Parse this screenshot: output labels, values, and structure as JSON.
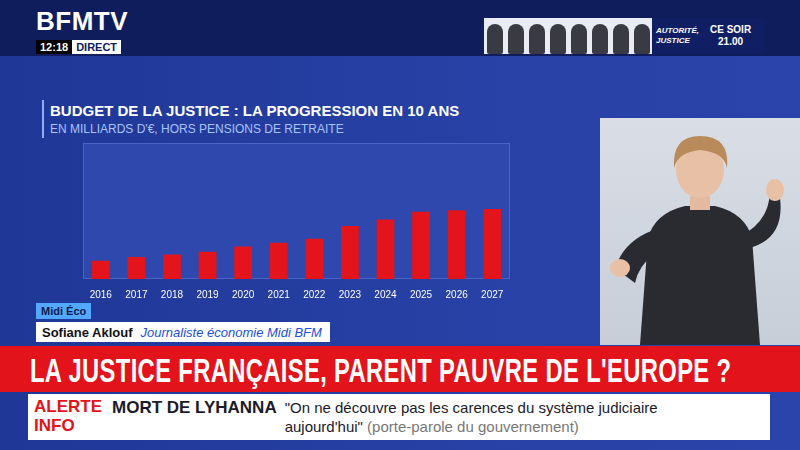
{
  "chart_data": {
    "type": "bar",
    "title": "BUDGET DE LA JUSTICE : LA PROGRESSION EN 10 ANS",
    "subtitle": "EN MILLIARDS D'€, HORS PENSIONS DE RETRAITE",
    "categories": [
      "2016",
      "2017",
      "2018",
      "2019",
      "2020",
      "2021",
      "2022",
      "2023",
      "2024",
      "2025",
      "2026",
      "2027"
    ],
    "values": [
      6.9,
      7.2,
      7.4,
      7.6,
      8.0,
      8.3,
      8.6,
      9.6,
      10.1,
      10.7,
      10.8,
      10.9
    ],
    "color": "#e3141b",
    "ylim": [
      5.5,
      16
    ],
    "grid": false,
    "tick_labels": "x"
  },
  "header": {
    "logo": "BFMTV",
    "time": "12:18",
    "live": "DIRECT",
    "promo": {
      "title": "AUTORITÉ, JUSTICE",
      "when": "CE SOIR",
      "time": "21.00"
    }
  },
  "lower_third": {
    "tag": "Midi Éco",
    "name": "Sofiane Aklouf",
    "role": "Journaliste économie Midi BFM",
    "headline": "LA JUSTICE FRANÇAISE, PARENT PAUVRE DE L'EUROPE ?"
  },
  "ticker": {
    "label": [
      "ALERTE",
      "INFO"
    ],
    "topic": "MORT DE LYHANNA",
    "quote": "\"On ne découvre pas les carences du système judiciaire aujourd'hui\"",
    "source": "(porte-parole du gouvernement)"
  }
}
